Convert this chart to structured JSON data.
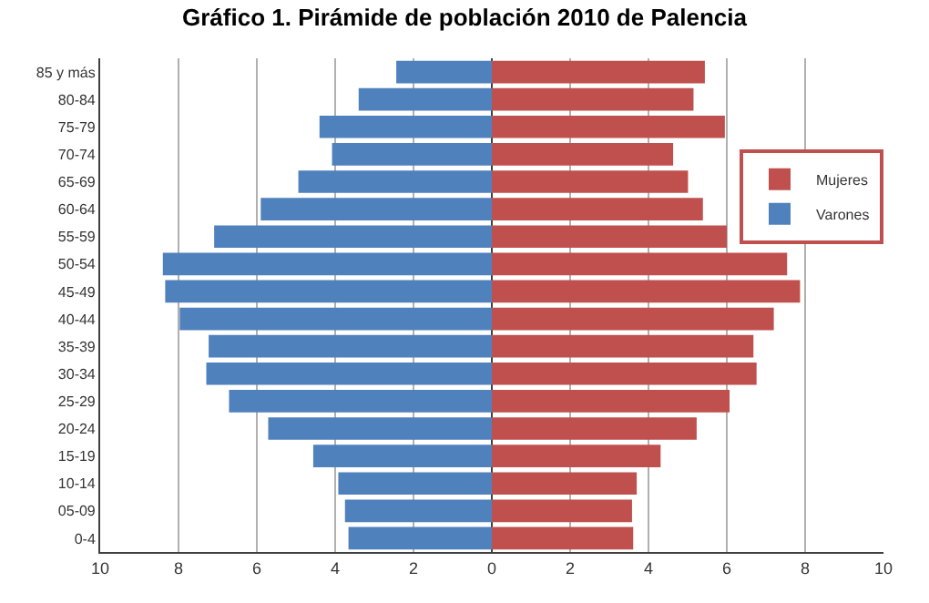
{
  "chart_data": {
    "type": "bar",
    "orientation": "horizontal",
    "title": "Gráfico 1. Pirámide de población 2010 de Palencia",
    "categories": [
      "85 y más",
      "80-84",
      "75-79",
      "70-74",
      "65-69",
      "60-64",
      "55-59",
      "50-54",
      "45-49",
      "40-44",
      "35-39",
      "30-34",
      "25-29",
      "20-24",
      "15-19",
      "10-14",
      "05-09",
      "0-4"
    ],
    "series": [
      {
        "name": "Mujeres",
        "color": "#c0504d",
        "values": [
          5.44,
          5.15,
          5.95,
          4.63,
          5.01,
          5.39,
          6.0,
          7.54,
          7.87,
          7.2,
          6.68,
          6.76,
          6.07,
          5.23,
          4.31,
          3.7,
          3.58,
          3.61
        ]
      },
      {
        "name": "Varones",
        "color": "#4f81bd",
        "values": [
          -2.44,
          -3.4,
          -4.4,
          -4.08,
          -4.94,
          -5.9,
          -7.09,
          -8.4,
          -8.34,
          -7.97,
          -7.23,
          -7.29,
          -6.71,
          -5.71,
          -4.56,
          -3.92,
          -3.75,
          -3.66
        ]
      }
    ],
    "xlim": [
      -10,
      10
    ],
    "xticks": [
      {
        "value": -10,
        "label": "10"
      },
      {
        "value": -8,
        "label": "8"
      },
      {
        "value": -6,
        "label": "6"
      },
      {
        "value": -4,
        "label": "4"
      },
      {
        "value": -2,
        "label": "2"
      },
      0,
      2,
      4,
      6,
      8,
      10
    ],
    "stacked": true,
    "grid": "x",
    "legend": "right"
  }
}
